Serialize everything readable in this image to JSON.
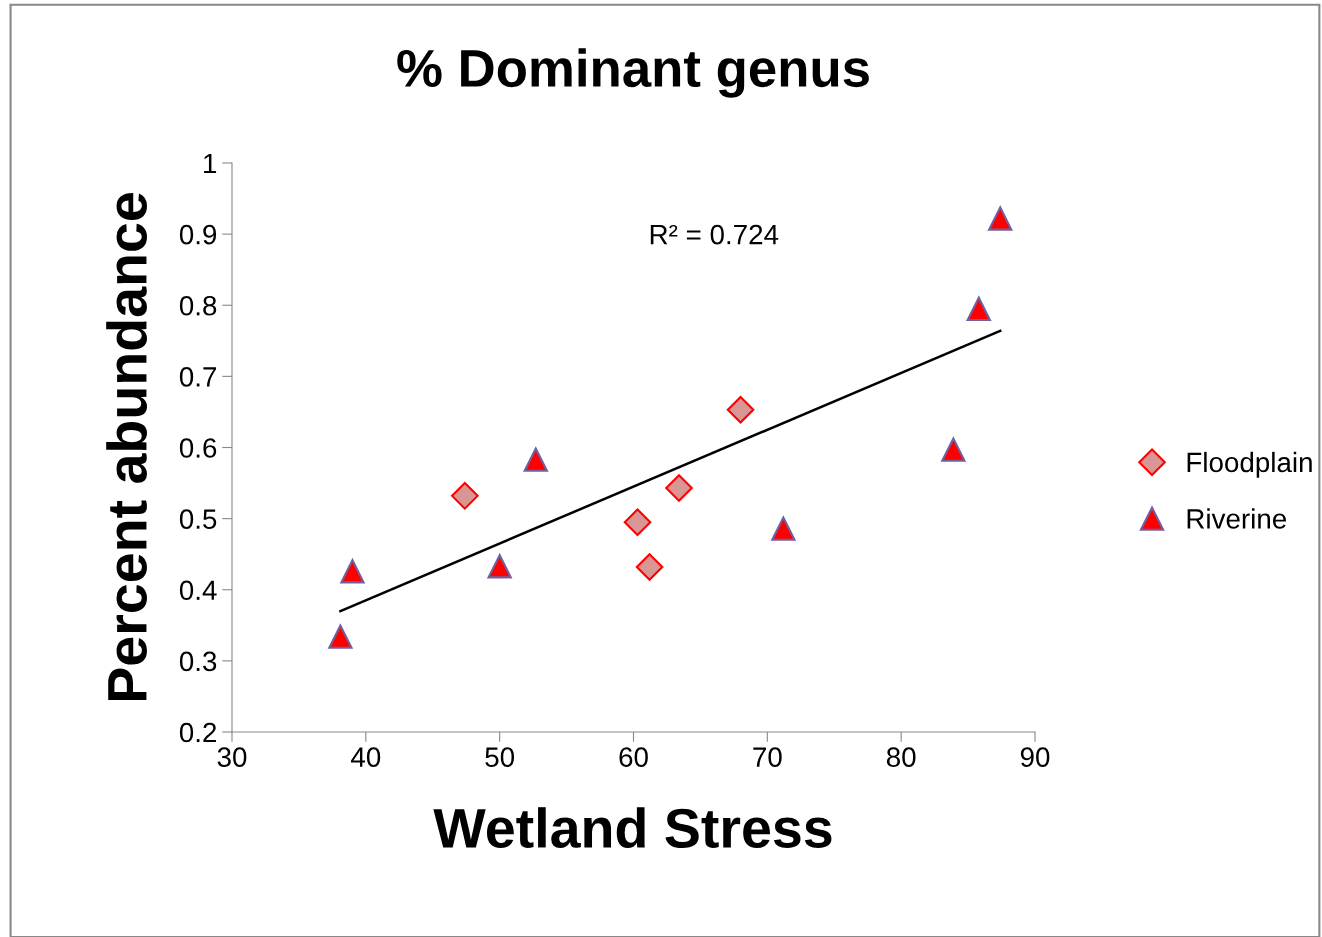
{
  "chart_data": {
    "type": "scatter",
    "title": "% Dominant genus",
    "xlabel": "Wetland Stress",
    "ylabel": "Percent abundance",
    "xlim": [
      30,
      90
    ],
    "xticks": [
      30,
      40,
      50,
      60,
      70,
      80,
      90
    ],
    "ylim": [
      0.2,
      1
    ],
    "yticks": [
      0.2,
      0.3,
      0.4,
      0.5,
      0.6,
      0.7,
      0.8,
      0.9,
      1
    ],
    "grid": false,
    "legend": "right",
    "annotations": [
      "R² = 0.724"
    ],
    "series": [
      {
        "name": "Floodplain",
        "color": "#d99694",
        "marker": "diamond",
        "x": [
          47.4,
          60.3,
          61.2,
          63.4,
          68.0
        ],
        "values": [
          0.532,
          0.495,
          0.432,
          0.543,
          0.653
        ]
      },
      {
        "name": "Riverine",
        "color": "#ff0000",
        "marker": "triangle",
        "x": [
          38.1,
          39.0,
          50.0,
          52.7,
          71.2,
          83.9,
          85.8,
          87.4
        ],
        "values": [
          0.334,
          0.426,
          0.433,
          0.583,
          0.486,
          0.597,
          0.795,
          0.922
        ]
      },
      {
        "type": "line",
        "color": "#000000",
        "marker": "none",
        "x": [
          38.1,
          87.4
        ],
        "values": [
          0.37,
          0.764
        ]
      }
    ]
  }
}
